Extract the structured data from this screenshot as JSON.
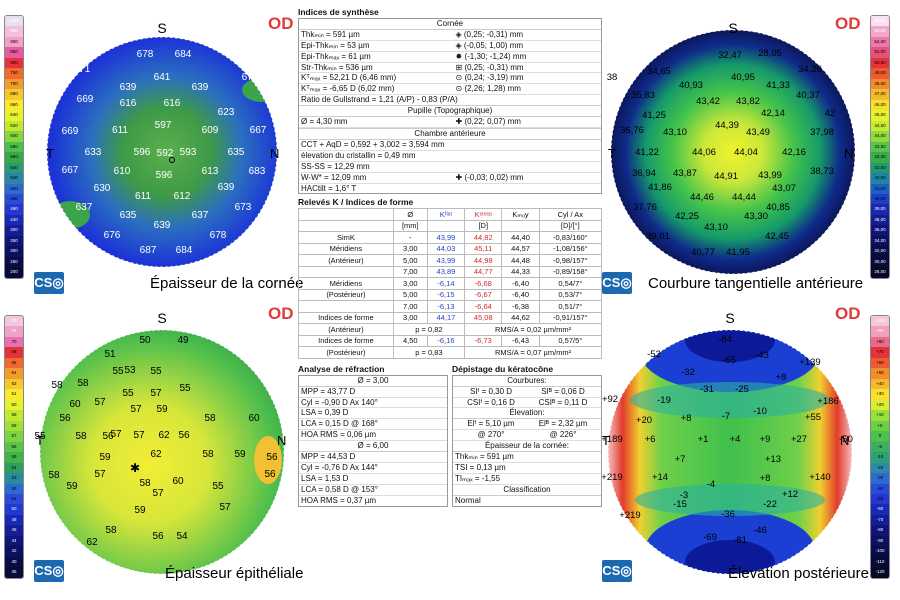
{
  "maps": [
    {
      "id": "cornea-thickness",
      "caption": "Épaisseur de la cornée",
      "od": "OD",
      "s": "S",
      "t": "T",
      "n": "N",
      "logo": "CS◎",
      "values": [
        "678",
        "684",
        "671",
        "639",
        "669",
        "639",
        "641",
        "676",
        "616",
        "616",
        "623",
        "669",
        "611",
        "597",
        "609",
        "667",
        "633",
        "596",
        "592",
        "593",
        "635",
        "667",
        "610",
        "596",
        "613",
        "683",
        "630",
        "611",
        "612",
        "639",
        "637",
        "635",
        "637",
        "673",
        "676",
        "639",
        "678",
        "687",
        "684"
      ],
      "scale": [
        "1000",
        "950",
        "900",
        "850",
        "800",
        "750",
        "700",
        "680",
        "660",
        "640",
        "620",
        "600",
        "580",
        "560",
        "540",
        "520",
        "500",
        "480",
        "460",
        "440",
        "400",
        "350",
        "300",
        "250",
        "200"
      ]
    },
    {
      "id": "anterior-curvature",
      "caption": "Courbure tangentielle antérieure",
      "od": "OD",
      "s": "S",
      "t": "T",
      "n": "N",
      "logo": "CS◎",
      "values": [
        "32,47",
        "28,05",
        "34,65",
        "40,95",
        "34,26",
        "38",
        "40,93",
        "41,33",
        "35,83",
        "43,42",
        "43,82",
        "40,37",
        "41,25",
        "42,14",
        "42",
        "36,76",
        "43,10",
        "44,39",
        "43,49",
        "37,98",
        "41,22",
        "44,06",
        "44,04",
        "42,16",
        "36,94",
        "43,87",
        "44,91",
        "43,99",
        "38,73",
        "41,86",
        "43,07",
        "37,76",
        "44,46",
        "44,44",
        "40,85",
        "42,25",
        "43,30",
        "39,01",
        "43,10",
        "42,45",
        "40,77",
        "41,95"
      ],
      "scale": [
        "58,00",
        "56,00",
        "54,00",
        "52,00",
        "50,00",
        "49,00",
        "48,00",
        "47,00",
        "46,00",
        "45,00",
        "44,50",
        "44,00",
        "43,50",
        "43,00",
        "42,50",
        "42,00",
        "41,00",
        "40,00",
        "39,00",
        "38,00",
        "36,00",
        "34,00",
        "32,00",
        "30,00",
        "28,00"
      ]
    },
    {
      "id": "epithelial-thickness",
      "caption": "Épaisseur épithéliale",
      "od": "OD",
      "s": "S",
      "t": "T",
      "n": "N",
      "logo": "CS◎",
      "values": [
        "50",
        "49",
        "51",
        "53",
        "55",
        "55",
        "58",
        "55",
        "57",
        "55",
        "58",
        "57",
        "57",
        "59",
        "60",
        "56",
        "57",
        "62",
        "56",
        "55",
        "56",
        "58",
        "58",
        "60",
        "59",
        "62",
        "58",
        "58",
        "57",
        "58",
        "60",
        "59",
        "57",
        "56",
        "56",
        "59",
        "57",
        "55",
        "59",
        "58",
        "62",
        "56",
        "54",
        "57"
      ],
      "scale": [
        "80",
        "75",
        "70",
        "68",
        "66",
        "64",
        "62",
        "61",
        "60",
        "59",
        "58",
        "57",
        "56",
        "55",
        "54",
        "53",
        "52",
        "51",
        "50",
        "48",
        "46",
        "44",
        "42",
        "40",
        "35"
      ]
    },
    {
      "id": "posterior-elevation",
      "caption": "Élevation postérieure",
      "od": "OD",
      "s": "S",
      "t": "T",
      "n": "N",
      "logo": "CS◎",
      "values": [
        "-84",
        "-52",
        "-65",
        "-43",
        "+139",
        "-32",
        "+8",
        "-19",
        "-31",
        "-25",
        "+92",
        "-10",
        "+186",
        "+20",
        "+8",
        "-7",
        "+55",
        "+189",
        "+6",
        "+1",
        "+4",
        "+9",
        "+27",
        "-50",
        "+7",
        "+13",
        "+219",
        "+14",
        "-4",
        "+8",
        "+140",
        "-3",
        "+12",
        "-15",
        "-22",
        "-36",
        "-46",
        "+219",
        "-69",
        "-81"
      ],
      "scale": [
        "+100",
        "+90",
        "+80",
        "+70",
        "+60",
        "+50",
        "+40",
        "+30",
        "+20",
        "+10",
        "+5",
        "0",
        "-5",
        "-10",
        "-20",
        "-30",
        "-40",
        "-50",
        "-60",
        "-70",
        "-80",
        "-90",
        "-100",
        "-110",
        "-120"
      ]
    }
  ],
  "colors": {
    "logo": "#1d69b1",
    "od": "#e23b3b",
    "blue": "#2a44c9",
    "red": "#d12b2b"
  },
  "synth": {
    "title": "Indices de synthèse",
    "cornee": "Cornée",
    "rows": [
      [
        "Thkₘᵢₙ = 591 µm",
        "◈ (0,25; -0,31) mm"
      ],
      [
        "Epi-Thkₘᵢₙ = 53 µm",
        "◈ (-0,05; 1,00) mm"
      ],
      [
        "Epi-Thkₘₐₓ = 61 µm",
        "✸ (-1,30; -1,24) mm"
      ],
      [
        "Str-Thkₘᵢₙ = 536 µm",
        "⊞ (0,25; -0,31) mm"
      ],
      [
        "Kᵀₘₐₓ = 52,21 D (6,46 mm)",
        "⊙ (0,24; -3,19) mm"
      ],
      [
        "Kᵀₘₐₓ = -6,65 D (6,02 mm)",
        "⊙ (2,26; 1,28) mm"
      ],
      [
        "Ratio de Gullstrand = 1,21 (A/P) - 0,83 (P/A)",
        ""
      ]
    ],
    "pupille": "Pupille (Topographique)",
    "pupille_row": [
      "Ø = 4,30 mm",
      "✚ (0,22; 0,07) mm"
    ],
    "chambre": "Chambre antérieure",
    "chambre_rows": [
      "CCT + AqD = 0,592 + 3,002 = 3,594 mm",
      "élevation du cristallin = 0,49 mm",
      "SS-SS = 12,29 mm"
    ],
    "ww": [
      "W-W* = 12,09 mm",
      "✚ (-0,03; 0,02) mm"
    ],
    "hac": "HACtilt = 1,6° T"
  },
  "k": {
    "title": "Relevés K / Indices de forme",
    "head": [
      "",
      "Ø",
      "Kᶠˡᵃᵗ",
      "Kˢᵗᵉᵉᵖ",
      "Kₘₒy",
      "Cyl / Ax"
    ],
    "units": [
      "",
      "[mm]",
      "",
      "[D]",
      "",
      "[D]/[°]"
    ],
    "rows": [
      [
        "SimK",
        "-",
        "43,99",
        "44,82",
        "44,40",
        "-0,83/160°"
      ],
      [
        "Méridiens",
        "3,00",
        "44,03",
        "45,11",
        "44,57",
        "-1,08/156°"
      ],
      [
        "(Antérieur)",
        "5,00",
        "43,99",
        "44,98",
        "44,48",
        "-0,98/157°"
      ],
      [
        "",
        "7,00",
        "43,89",
        "44,77",
        "44,33",
        "-0,89/158°"
      ],
      [
        "Méridiens",
        "3,00",
        "-6,14",
        "-6,68",
        "-6,40",
        "0,54/7°"
      ],
      [
        "(Postérieur)",
        "5,00",
        "-6,15",
        "-6,67",
        "-6,40",
        "0,53/7°"
      ],
      [
        "",
        "7,00",
        "-6,13",
        "-6,64",
        "-6,38",
        "0,51/7°"
      ],
      [
        "Indices de forme",
        "3,00",
        "44,17",
        "45,08",
        "44,62",
        "-0,91/157°"
      ]
    ],
    "shape1": [
      "(Antérieur)",
      "p = 0,82",
      "RMS/A = 0,02 µm/mm²"
    ],
    "shape2": [
      "Indices de forme",
      "4,50",
      "-6,16",
      "-6,73",
      "-6,43",
      "0,57/5°"
    ],
    "shape3": [
      "(Postérieur)",
      "p = 0,83",
      "RMS/A = 0,07 µm/mm²"
    ]
  },
  "refr": {
    "title": "Analyse de réfraction",
    "d1": "Ø = 3,00",
    "rows1": [
      "MPP = 43,77 D",
      "Cyl = -0,90 D Ax 140°",
      "LSA = 0,39 D",
      "LCA = 0,15 D @ 168°",
      "HOA RMS = 0,06 µm"
    ],
    "d2": "Ø = 6,00",
    "rows2": [
      "MPP = 44,53 D",
      "Cyl = -0,76 D Ax 144°",
      "LSA = 1,53 D",
      "LCA = 0,58 D @ 153°",
      "HOA RMS = 0,37 µm"
    ]
  },
  "kera": {
    "title": "Dépistage du kératocône",
    "courb": "Courbures:",
    "courb_rows": [
      [
        "SIᶠ = 0,30 D",
        "SIᴮ = 0,06 D"
      ],
      [
        "CSIᶠ = 0,16 D",
        "CSIᴮ = 0,11 D"
      ]
    ],
    "elev": "Élevation:",
    "elev_rows": [
      [
        "Elᶠ = 5,10 µm",
        "Elᴮ = 2,32 µm"
      ],
      [
        "@ 270°",
        "@ 226°"
      ]
    ],
    "epai": "Épaisseur de la cornée:",
    "epai_rows": [
      "Thkₘᵢₙ = 591 µm",
      "TSI = 0,13 µm",
      "TIₘₐₓ = -1,55"
    ],
    "classif": "Classification",
    "normal": "Normal"
  }
}
